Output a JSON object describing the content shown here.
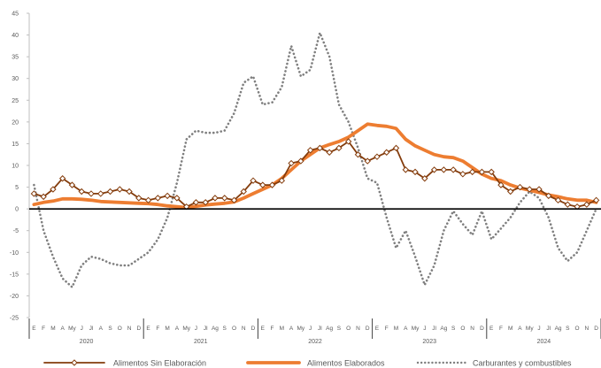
{
  "chart_data": {
    "type": "line",
    "title": "",
    "xlabel": "",
    "ylabel": "",
    "ylim": [
      -25,
      45
    ],
    "yticks": [
      -25,
      -20,
      -15,
      -10,
      -5,
      0,
      5,
      10,
      15,
      20,
      25,
      30,
      35,
      40,
      45
    ],
    "grid": false,
    "legend_position": "bottom",
    "month_labels": [
      "E",
      "F",
      "M",
      "A",
      "My",
      "J",
      "Jl",
      "A",
      "S",
      "O",
      "N",
      "D",
      "E",
      "F",
      "M",
      "A",
      "My",
      "J",
      "Jl",
      "Ag",
      "S",
      "O",
      "N",
      "D",
      "E",
      "F",
      "M",
      "A",
      "My",
      "J",
      "Jl",
      "Ag",
      "S",
      "O",
      "N",
      "D",
      "E",
      "F",
      "M",
      "A",
      "My",
      "J",
      "Jl",
      "Ag",
      "S",
      "O",
      "N",
      "D",
      "E",
      "F",
      "M",
      "A",
      "My",
      "J",
      "Jl",
      "Ag",
      "S",
      "O",
      "N",
      "D"
    ],
    "years": [
      "2020",
      "2021",
      "2022",
      "2023",
      "2024"
    ],
    "series": [
      {
        "name": "Alimentos Sin Elaboración",
        "color": "#843c0c",
        "style": "solid-markers",
        "values": [
          3.5,
          2.8,
          4.5,
          7.0,
          5.5,
          4.0,
          3.5,
          3.5,
          4.0,
          4.5,
          4.0,
          2.5,
          2.0,
          2.5,
          3.0,
          2.5,
          0.5,
          1.5,
          1.5,
          2.5,
          2.5,
          2.0,
          4.0,
          6.5,
          5.5,
          5.5,
          6.5,
          10.5,
          11.0,
          13.5,
          14.0,
          13.0,
          14.0,
          15.5,
          12.5,
          11.0,
          12.0,
          13.0,
          14.0,
          9.0,
          8.5,
          7.0,
          9.0,
          9.0,
          9.0,
          8.0,
          8.5,
          8.5,
          8.5,
          5.5,
          4.0,
          5.0,
          4.5,
          4.5,
          3.0,
          2.0,
          1.0,
          0.5,
          1.0,
          2.0
        ]
      },
      {
        "name": "Alimentos Elaborados",
        "color": "#ed7d31",
        "style": "solid-thick",
        "values": [
          1.0,
          1.5,
          1.8,
          2.3,
          2.3,
          2.2,
          2.0,
          1.7,
          1.6,
          1.5,
          1.4,
          1.3,
          1.2,
          1.0,
          0.7,
          0.5,
          0.3,
          0.6,
          0.9,
          1.1,
          1.3,
          1.6,
          2.5,
          3.5,
          4.5,
          5.5,
          7.0,
          9.0,
          11.0,
          12.5,
          14.0,
          14.8,
          15.5,
          16.5,
          18.0,
          19.5,
          19.2,
          19.0,
          18.5,
          16.0,
          14.5,
          13.5,
          12.5,
          12.0,
          11.8,
          11.0,
          9.5,
          8.0,
          7.0,
          6.5,
          5.5,
          4.8,
          4.3,
          3.8,
          3.2,
          2.8,
          2.3,
          2.0,
          2.0,
          1.5
        ]
      },
      {
        "name": "Carburantes y combustibles",
        "color": "#7f7f7f",
        "style": "dotted",
        "values": [
          5.5,
          -5.0,
          -11.0,
          -16.0,
          -18.0,
          -13.0,
          -11.0,
          -11.5,
          -12.5,
          -13.0,
          -13.0,
          -11.5,
          -10.0,
          -7.0,
          -2.0,
          6.0,
          16.0,
          18.0,
          17.5,
          17.5,
          18.0,
          22.0,
          29.0,
          30.5,
          24.0,
          24.5,
          28.0,
          37.5,
          30.5,
          32.0,
          40.5,
          35.0,
          24.0,
          20.0,
          14.0,
          7.0,
          6.0,
          -2.0,
          -9.0,
          -5.0,
          -11.0,
          -17.5,
          -13.0,
          -5.0,
          -0.5,
          -3.5,
          -6.0,
          -0.5,
          -7.0,
          -4.5,
          -2.0,
          1.5,
          4.0,
          2.5,
          -2.0,
          -9.0,
          -12.0,
          -10.0,
          -5.0,
          0.0
        ]
      }
    ]
  }
}
